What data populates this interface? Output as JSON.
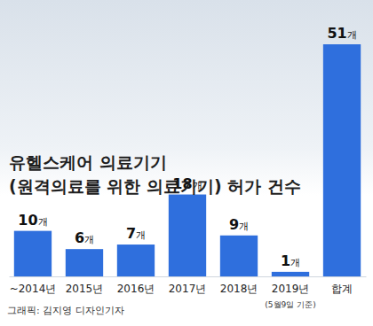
{
  "chart_data": {
    "type": "bar",
    "title": "유헬스케어 의료기기",
    "subtitle": "(원격의료를 위한 의료기기) 허가 건수",
    "categories": [
      "~2014년",
      "2015년",
      "2016년",
      "2017년",
      "2018년",
      "2019년",
      "합계"
    ],
    "values": [
      10,
      6,
      7,
      18,
      9,
      1,
      51
    ],
    "value_labels": [
      "10개",
      "6개",
      "7개",
      "18개",
      "9개",
      "1개",
      "51개"
    ],
    "color": "#2f6fdd",
    "ylim": [
      0,
      51
    ],
    "data_labels": true,
    "tick_labels": "x",
    "grid": false,
    "annotations": [
      {
        "text": "(5월9일 기준)",
        "category": "2019년"
      },
      {
        "text": "그래픽: 김지영 디자인기자"
      }
    ]
  }
}
